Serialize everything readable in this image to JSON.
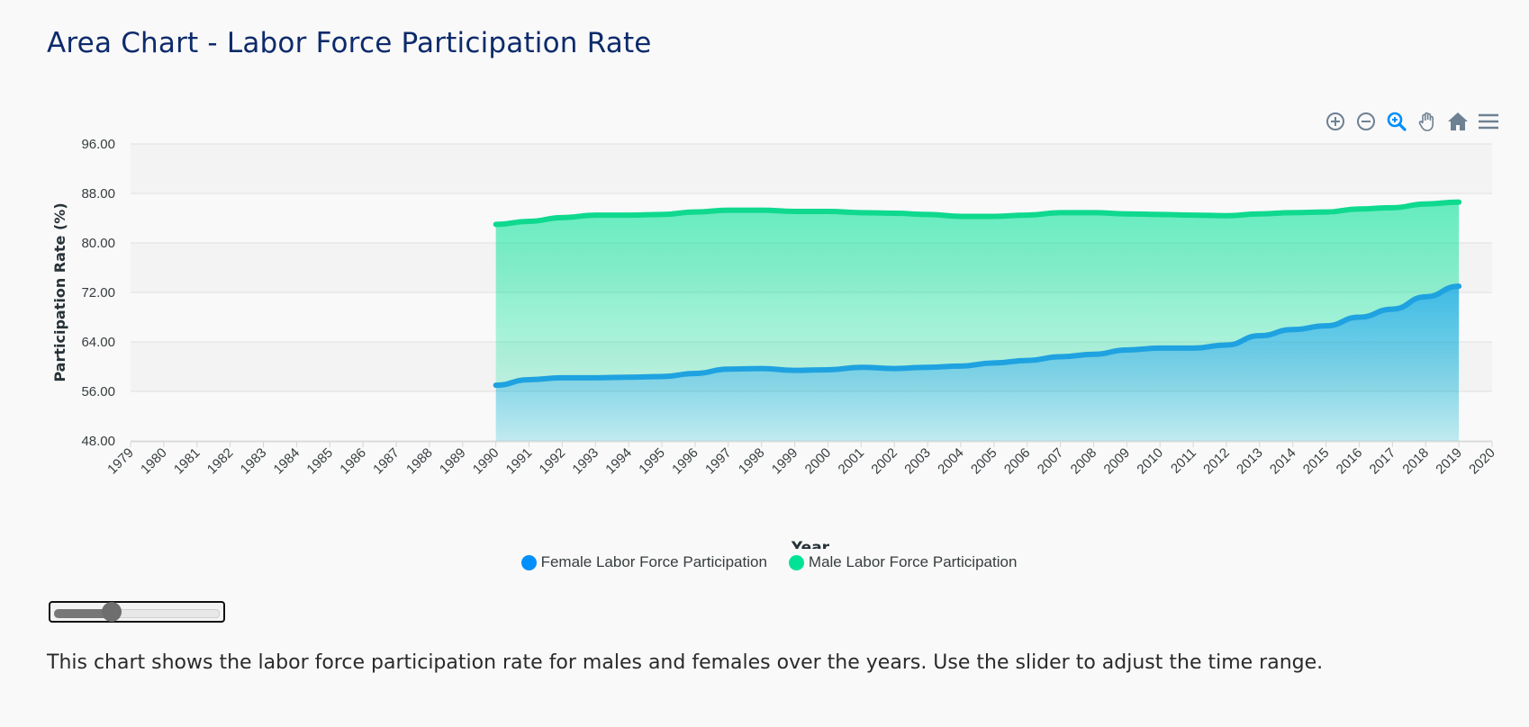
{
  "page": {
    "title": "Area Chart - Labor Force Participation Rate",
    "description": "This chart shows the labor force participation rate for males and females over the years. Use the slider to adjust the time range."
  },
  "toolbar": {
    "icons": [
      "zoom-in-icon",
      "zoom-out-icon",
      "selection-zoom-icon",
      "pan-hand-icon",
      "home-reset-icon",
      "menu-icon"
    ],
    "active_color": "#008ffb",
    "icon_color": "#6e8192"
  },
  "slider": {
    "value_fraction": 0.35
  },
  "chart_data": {
    "type": "area",
    "xlabel": "Year",
    "ylabel": "Participation Rate (%)",
    "ylim": [
      48,
      96
    ],
    "yticks": [
      "96.00",
      "88.00",
      "80.00",
      "72.00",
      "64.00",
      "56.00",
      "48.00"
    ],
    "xlim": [
      1979,
      2020
    ],
    "xticks": [
      "1979",
      "1980",
      "1981",
      "1982",
      "1983",
      "1984",
      "1985",
      "1986",
      "1987",
      "1988",
      "1989",
      "1990",
      "1991",
      "1992",
      "1993",
      "1994",
      "1995",
      "1996",
      "1997",
      "1998",
      "1999",
      "2000",
      "2001",
      "2002",
      "2003",
      "2004",
      "2005",
      "2006",
      "2007",
      "2008",
      "2009",
      "2010",
      "2011",
      "2012",
      "2013",
      "2014",
      "2015",
      "2016",
      "2017",
      "2018",
      "2019",
      "2020"
    ],
    "grid": true,
    "legend_position": "bottom",
    "x": [
      1990,
      1991,
      1992,
      1993,
      1994,
      1995,
      1996,
      1997,
      1998,
      1999,
      2000,
      2001,
      2002,
      2003,
      2004,
      2005,
      2006,
      2007,
      2008,
      2009,
      2010,
      2011,
      2012,
      2013,
      2014,
      2015,
      2016,
      2017,
      2018,
      2019
    ],
    "series": [
      {
        "name": "Female Labor Force Participation",
        "color": "#008ffb",
        "line_color": "#1fa2e0",
        "values": [
          57.0,
          57.9,
          58.2,
          58.2,
          58.3,
          58.4,
          58.9,
          59.6,
          59.7,
          59.4,
          59.5,
          59.9,
          59.7,
          59.9,
          60.1,
          60.6,
          61.0,
          61.6,
          62.0,
          62.7,
          63.0,
          63.0,
          63.5,
          65.0,
          66.0,
          66.6,
          68.0,
          69.3,
          71.3,
          73.0
        ]
      },
      {
        "name": "Male Labor Force Participation",
        "color": "#00e396",
        "line_color": "#0fd98e",
        "values": [
          83.0,
          83.5,
          84.1,
          84.5,
          84.5,
          84.6,
          85.0,
          85.3,
          85.3,
          85.1,
          85.1,
          84.9,
          84.8,
          84.6,
          84.3,
          84.3,
          84.5,
          84.9,
          84.9,
          84.7,
          84.6,
          84.5,
          84.4,
          84.7,
          84.9,
          85.0,
          85.5,
          85.7,
          86.3,
          86.6
        ]
      }
    ]
  }
}
